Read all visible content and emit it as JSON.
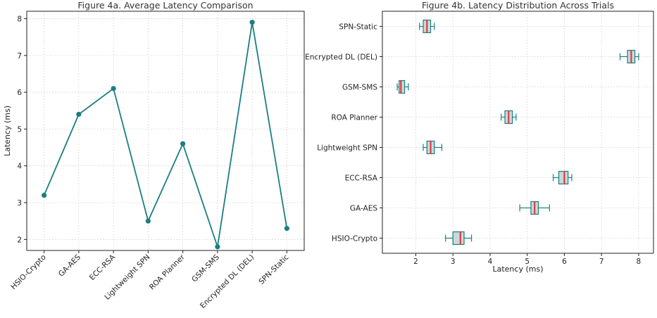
{
  "chart_data": [
    {
      "type": "line",
      "title": "Figure 4a. Average Latency Comparison",
      "xlabel": "",
      "ylabel": "Latency (ms)",
      "categories": [
        "HSIO-Crypto",
        "GA-AES",
        "ECC-RSA",
        "Lightweight SPN",
        "ROA Planner",
        "GSM-SMS",
        "Encrypted DL (DEL)",
        "SPN-Static"
      ],
      "values": [
        3.2,
        5.4,
        6.1,
        2.5,
        4.6,
        1.8,
        7.9,
        2.3
      ],
      "yticks": [
        2,
        3,
        4,
        5,
        6,
        7,
        8
      ],
      "ylim": [
        1.7,
        8.2
      ],
      "grid": true,
      "color": "#1a7f80"
    },
    {
      "type": "box",
      "orientation": "horizontal",
      "title": "Figure 4b. Latency Distribution Across Trials",
      "xlabel": "Latency (ms)",
      "ylabel": "",
      "categories": [
        "HSIO-Crypto",
        "GA-AES",
        "ECC-RSA",
        "Lightweight SPN",
        "ROA Planner",
        "GSM-SMS",
        "Encrypted DL (DEL)",
        "SPN-Static"
      ],
      "boxes": [
        {
          "min": 2.8,
          "q1": 3.0,
          "median": 3.2,
          "q3": 3.3,
          "max": 3.5
        },
        {
          "min": 4.8,
          "q1": 5.1,
          "median": 5.2,
          "q3": 5.3,
          "max": 5.6
        },
        {
          "min": 5.7,
          "q1": 5.85,
          "median": 6.0,
          "q3": 6.1,
          "max": 6.2
        },
        {
          "min": 2.2,
          "q1": 2.3,
          "median": 2.4,
          "q3": 2.5,
          "max": 2.7
        },
        {
          "min": 4.3,
          "q1": 4.4,
          "median": 4.5,
          "q3": 4.6,
          "max": 4.7
        },
        {
          "min": 1.5,
          "q1": 1.55,
          "median": 1.6,
          "q3": 1.7,
          "max": 1.8
        },
        {
          "min": 7.5,
          "q1": 7.7,
          "median": 7.8,
          "q3": 7.9,
          "max": 8.0
        },
        {
          "min": 2.1,
          "q1": 2.2,
          "median": 2.3,
          "q3": 2.4,
          "max": 2.5
        }
      ],
      "xticks": [
        2,
        3,
        4,
        5,
        6,
        7,
        8
      ],
      "xlim": [
        1.1,
        8.4
      ],
      "grid": true,
      "box_fill": "#c9d8dd",
      "box_edge": "#1a7f80",
      "median_color": "#e03030"
    }
  ]
}
